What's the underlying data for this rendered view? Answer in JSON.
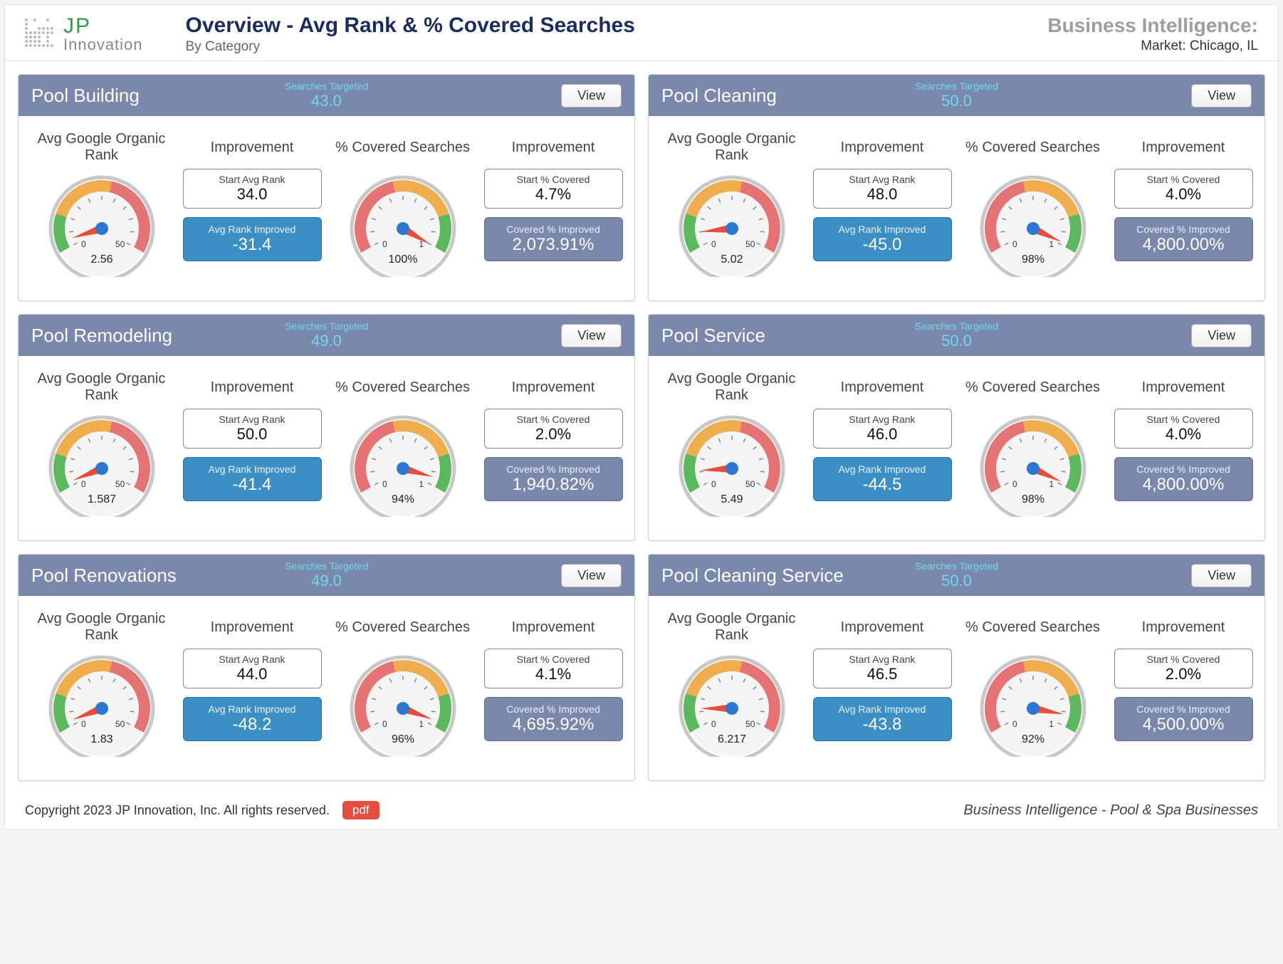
{
  "header": {
    "logo": {
      "top": "JP",
      "bottom": "Innovation"
    },
    "title": "Overview - Avg Rank & % Covered Searches",
    "subtitle": "By Category",
    "bi_title": "Business Intelligence:",
    "bi_market": "Market: Chicago, IL"
  },
  "labels": {
    "searches_targeted": "Searches Targeted",
    "view": "View",
    "avg_rank_header": "Avg Google\nOrganic Rank",
    "improvement": "Improvement",
    "covered_header": "% Covered\nSearches",
    "start_avg_rank": "Start Avg Rank",
    "avg_rank_improved": "Avg Rank Improved",
    "start_pct_covered": "Start % Covered",
    "covered_pct_improved": "Covered % Improved"
  },
  "gauge_style": {
    "rank": {
      "min": 0,
      "max": 50,
      "min_label": "0",
      "max_label": "50",
      "segments": [
        {
          "from": 0.0,
          "to": 0.2,
          "color": "#5cb85c"
        },
        {
          "from": 0.2,
          "to": 0.55,
          "color": "#f0ad4e"
        },
        {
          "from": 0.55,
          "to": 1.0,
          "color": "#e57373"
        }
      ],
      "needle_color": "#e74c3c",
      "hub_color": "#2b77d1"
    },
    "covered": {
      "min": 0,
      "max": 1,
      "min_label": "0",
      "max_label": "1",
      "segments": [
        {
          "from": 0.0,
          "to": 0.45,
          "color": "#e57373"
        },
        {
          "from": 0.45,
          "to": 0.8,
          "color": "#f0ad4e"
        },
        {
          "from": 0.8,
          "to": 1.0,
          "color": "#5cb85c"
        }
      ],
      "needle_color": "#e74c3c",
      "hub_color": "#2b77d1"
    }
  },
  "panels": [
    {
      "title": "Pool Building",
      "targeted": "43.0",
      "rank_value": 2.56,
      "rank_caption": "2.56",
      "start_rank": "34.0",
      "rank_improved": "-31.4",
      "covered_value": 1.0,
      "covered_caption": "100%",
      "start_covered": "4.7%",
      "covered_improved": "2,073.91%"
    },
    {
      "title": "Pool Cleaning",
      "targeted": "50.0",
      "rank_value": 5.02,
      "rank_caption": "5.02",
      "start_rank": "48.0",
      "rank_improved": "-45.0",
      "covered_value": 0.98,
      "covered_caption": "98%",
      "start_covered": "4.0%",
      "covered_improved": "4,800.00%"
    },
    {
      "title": "Pool Remodeling",
      "targeted": "49.0",
      "rank_value": 1.587,
      "rank_caption": "1.587",
      "start_rank": "50.0",
      "rank_improved": "-41.4",
      "covered_value": 0.94,
      "covered_caption": "94%",
      "start_covered": "2.0%",
      "covered_improved": "1,940.82%"
    },
    {
      "title": "Pool Service",
      "targeted": "50.0",
      "rank_value": 5.49,
      "rank_caption": "5.49",
      "start_rank": "46.0",
      "rank_improved": "-44.5",
      "covered_value": 0.98,
      "covered_caption": "98%",
      "start_covered": "4.0%",
      "covered_improved": "4,800.00%"
    },
    {
      "title": "Pool Renovations",
      "targeted": "49.0",
      "rank_value": 1.83,
      "rank_caption": "1.83",
      "start_rank": "44.0",
      "rank_improved": "-48.2",
      "covered_value": 0.96,
      "covered_caption": "96%",
      "start_covered": "4.1%",
      "covered_improved": "4,695.92%"
    },
    {
      "title": "Pool Cleaning Service",
      "targeted": "50.0",
      "rank_value": 6.217,
      "rank_caption": "6.217",
      "start_rank": "46.5",
      "rank_improved": "-43.8",
      "covered_value": 0.92,
      "covered_caption": "92%",
      "start_covered": "2.0%",
      "covered_improved": "4,500.00%"
    }
  ],
  "footer": {
    "copyright": "Copyright 2023 JP Innovation, Inc.  All rights reserved.",
    "pdf": "pdf",
    "tagline": "Business Intelligence - Pool & Spa Businesses"
  }
}
